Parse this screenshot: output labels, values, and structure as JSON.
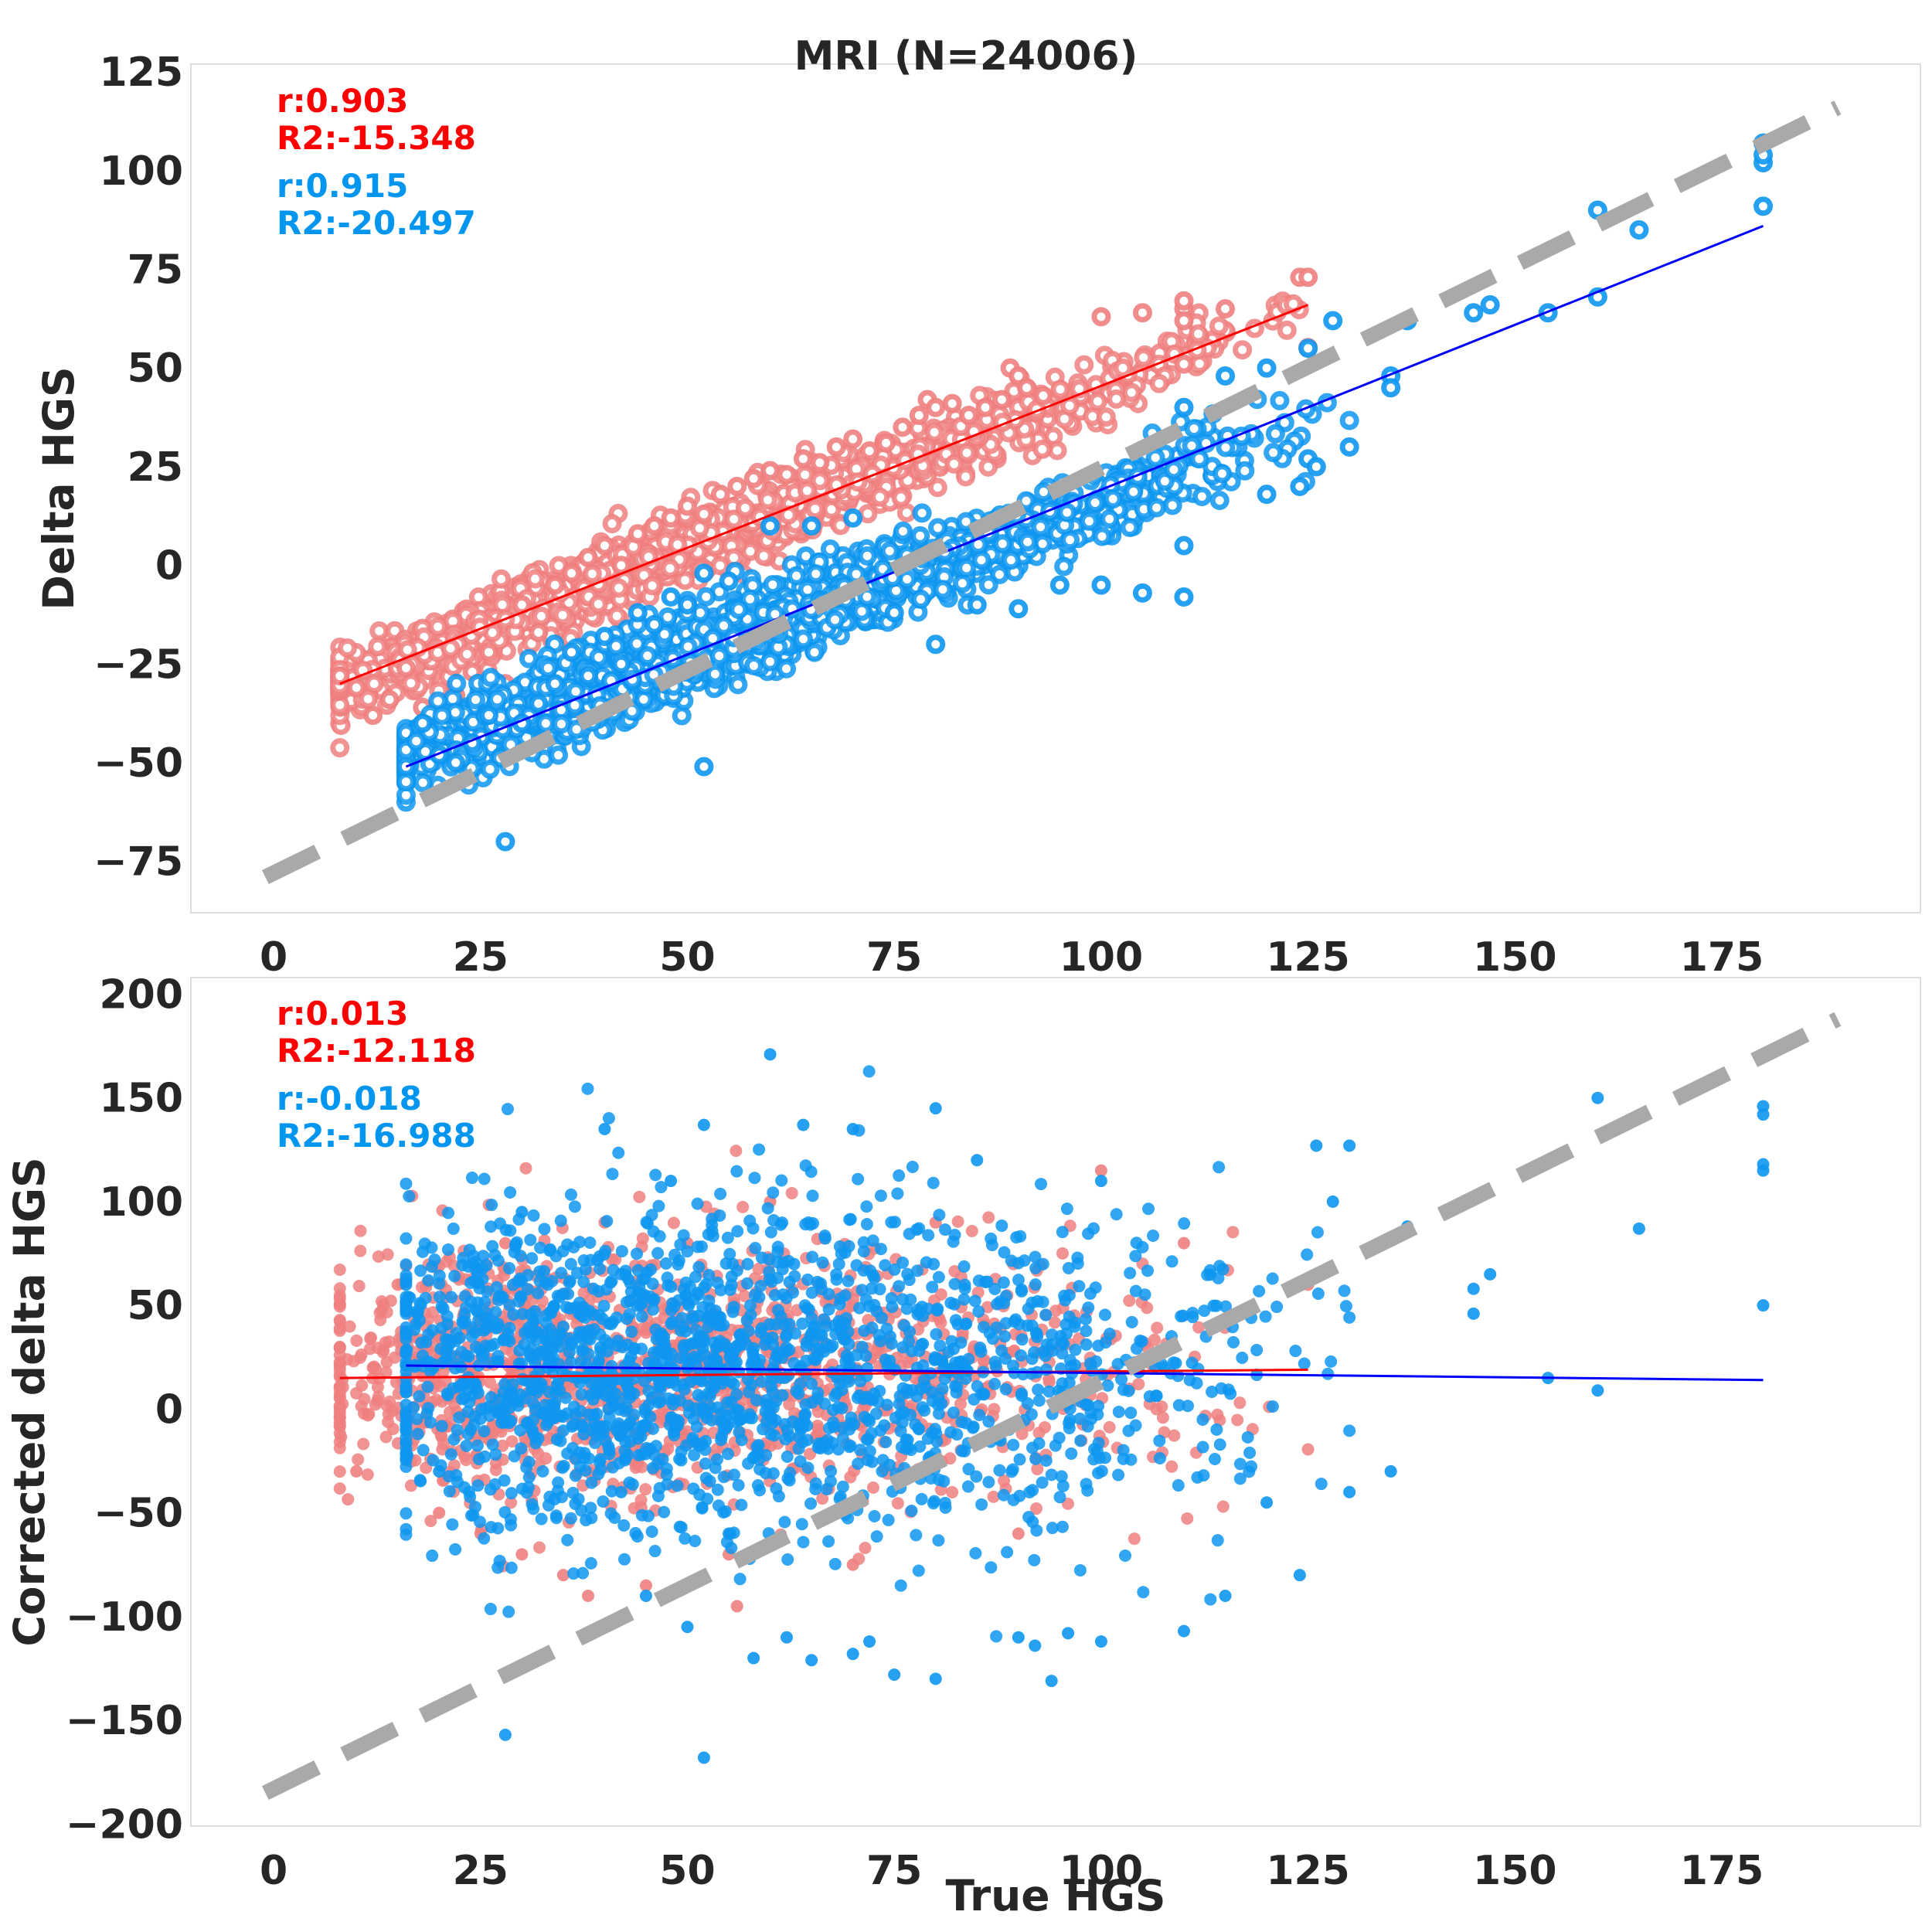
{
  "colors": {
    "female_points": "#f08080",
    "male_points": "#0e96f0",
    "female_fit": "#ff0000",
    "male_fit": "#0000ff",
    "female_text": "#ff0000",
    "male_text": "#0096f0",
    "identity_line": "#a9a9a9",
    "frame": "#dddddd"
  },
  "chart_data": [
    {
      "type": "scatter",
      "title": "MRI (N=24006)",
      "xlabel": "",
      "ylabel": "Delta HGS",
      "xlim": [
        -10,
        199
      ],
      "ylim": [
        -88,
        127
      ],
      "xticks": [
        0,
        25,
        50,
        75,
        100,
        125,
        150,
        175
      ],
      "yticks": [
        -75,
        -50,
        -25,
        0,
        25,
        50,
        75,
        100,
        125
      ],
      "grid": false,
      "marker": "ring",
      "annotations": [
        {
          "text": "r:0.903",
          "series": "female"
        },
        {
          "text": "R2:-15.348",
          "series": "female"
        },
        {
          "text": "r:0.915",
          "series": "male"
        },
        {
          "text": "R2:-20.497",
          "series": "male"
        }
      ],
      "identity_line": {
        "x": [
          -1,
          189
        ],
        "y": [
          -79,
          116
        ]
      },
      "fit_lines": [
        {
          "series": "female",
          "x": [
            8,
            125
          ],
          "y": [
            -30,
            66
          ]
        },
        {
          "series": "male",
          "x": [
            16,
            180
          ],
          "y": [
            -51,
            86
          ]
        }
      ],
      "series": [
        {
          "key": "female",
          "cloud": {
            "x_range": [
              8,
              125
            ],
            "slope": 0.82,
            "intercept": -37,
            "spread": 4.2,
            "n": 1400
          },
          "points": [
            [
              8,
              -28
            ],
            [
              10,
              -31
            ],
            [
              12,
              -38
            ],
            [
              14,
              -34
            ],
            [
              16,
              -26
            ],
            [
              18,
              -36
            ],
            [
              20,
              -35
            ],
            [
              22,
              -33
            ],
            [
              24,
              -27
            ],
            [
              26,
              -22
            ],
            [
              28,
              -30
            ],
            [
              30,
              -10
            ],
            [
              32,
              -17
            ],
            [
              34,
              -5
            ],
            [
              36,
              -2
            ],
            [
              38,
              2
            ],
            [
              40,
              5
            ],
            [
              42,
              0
            ],
            [
              44,
              8
            ],
            [
              46,
              10
            ],
            [
              48,
              12
            ],
            [
              50,
              15
            ],
            [
              52,
              13
            ],
            [
              54,
              18
            ],
            [
              56,
              20
            ],
            [
              58,
              22
            ],
            [
              60,
              24
            ],
            [
              62,
              23
            ],
            [
              64,
              27
            ],
            [
              66,
              26
            ],
            [
              68,
              30
            ],
            [
              70,
              32
            ],
            [
              72,
              29
            ],
            [
              74,
              31
            ],
            [
              76,
              35
            ],
            [
              78,
              38
            ],
            [
              79,
              42
            ],
            [
              80,
              40
            ],
            [
              82,
              41
            ],
            [
              84,
              38
            ],
            [
              86,
              40
            ],
            [
              88,
              42
            ],
            [
              89,
              50
            ],
            [
              90,
              48
            ],
            [
              91,
              45
            ],
            [
              93,
              43
            ],
            [
              100,
              63
            ],
            [
              105,
              64
            ],
            [
              110,
              65
            ],
            [
              110,
              67
            ],
            [
              110,
              62
            ],
            [
              110,
              51
            ],
            [
              115,
              65
            ],
            [
              124,
              73
            ],
            [
              125,
              73
            ]
          ]
        },
        {
          "key": "male",
          "cloud": {
            "x_range": [
              16,
              130
            ],
            "slope": 0.77,
            "intercept": -61,
            "spread": 5.0,
            "n": 1700
          },
          "points": [
            [
              16,
              -51
            ],
            [
              18,
              -40
            ],
            [
              20,
              -48
            ],
            [
              22,
              -50
            ],
            [
              24,
              -45
            ],
            [
              26,
              -38
            ],
            [
              28,
              -70
            ],
            [
              30,
              -40
            ],
            [
              32,
              -35
            ],
            [
              34,
              -30
            ],
            [
              36,
              -22
            ],
            [
              38,
              -28
            ],
            [
              40,
              -18
            ],
            [
              42,
              -25
            ],
            [
              44,
              -12
            ],
            [
              46,
              -15
            ],
            [
              48,
              -8
            ],
            [
              50,
              -10
            ],
            [
              52,
              -51
            ],
            [
              52,
              -2
            ],
            [
              55,
              -4
            ],
            [
              60,
              10
            ],
            [
              65,
              10
            ],
            [
              70,
              12
            ],
            [
              75,
              -12
            ],
            [
              80,
              -20
            ],
            [
              85,
              -10
            ],
            [
              90,
              -11
            ],
            [
              95,
              -5
            ],
            [
              100,
              -5
            ],
            [
              105,
              -7
            ],
            [
              110,
              5
            ],
            [
              110,
              -8
            ],
            [
              110,
              40
            ],
            [
              115,
              48
            ],
            [
              120,
              50
            ],
            [
              120,
              18
            ],
            [
              124,
              20
            ],
            [
              125,
              55
            ],
            [
              125,
              27
            ],
            [
              126,
              25
            ],
            [
              128,
              62
            ],
            [
              130,
              30
            ],
            [
              135,
              48
            ],
            [
              135,
              45
            ],
            [
              137,
              62
            ],
            [
              145,
              64
            ],
            [
              147,
              66
            ],
            [
              154,
              64
            ],
            [
              160,
              90
            ],
            [
              160,
              68
            ],
            [
              165,
              85
            ],
            [
              180,
              107
            ],
            [
              180,
              102
            ],
            [
              180,
              91
            ],
            [
              180,
              104
            ]
          ]
        }
      ]
    },
    {
      "type": "scatter",
      "title": "",
      "xlabel": "True HGS",
      "ylabel": "Corrected delta HGS",
      "xlim": [
        -10,
        199
      ],
      "ylim": [
        -201,
        208
      ],
      "xticks": [
        0,
        25,
        50,
        75,
        100,
        125,
        150,
        175
      ],
      "yticks": [
        -200,
        -150,
        -100,
        -50,
        0,
        50,
        100,
        150,
        200
      ],
      "grid": false,
      "marker": "dot",
      "annotations": [
        {
          "text": "r:0.013",
          "series": "female"
        },
        {
          "text": "R2:-12.118",
          "series": "female"
        },
        {
          "text": "r:-0.018",
          "series": "male"
        },
        {
          "text": "R2:-16.988",
          "series": "male"
        }
      ],
      "identity_line": {
        "x": [
          -1,
          189
        ],
        "y": [
          -185,
          188
        ]
      },
      "fit_lines": [
        {
          "series": "female",
          "x": [
            8,
            125
          ],
          "y": [
            15,
            19
          ]
        },
        {
          "series": "male",
          "x": [
            16,
            180
          ],
          "y": [
            21,
            14
          ]
        }
      ],
      "series": [
        {
          "key": "female",
          "cloud": {
            "x_range": [
              8,
              125
            ],
            "center_y": 17,
            "spread": 30,
            "n": 1300
          },
          "points": [
            [
              8,
              30
            ],
            [
              10,
              -30
            ],
            [
              12,
              20
            ],
            [
              15,
              60
            ],
            [
              20,
              -50
            ],
            [
              25,
              -60
            ],
            [
              28,
              80
            ],
            [
              30,
              -70
            ],
            [
              35,
              -80
            ],
            [
              38,
              -90
            ],
            [
              40,
              90
            ],
            [
              45,
              -85
            ],
            [
              50,
              80
            ],
            [
              55,
              -70
            ],
            [
              56,
              -95
            ],
            [
              60,
              100
            ],
            [
              70,
              -75
            ],
            [
              80,
              90
            ],
            [
              90,
              -60
            ],
            [
              100,
              115
            ],
            [
              110,
              80
            ],
            [
              125,
              60
            ]
          ]
        },
        {
          "key": "male",
          "cloud": {
            "x_range": [
              16,
              130
            ],
            "center_y": 19,
            "spread": 38,
            "n": 1900
          },
          "points": [
            [
              16,
              60
            ],
            [
              20,
              -30
            ],
            [
              28,
              -157
            ],
            [
              30,
              95
            ],
            [
              40,
              135
            ],
            [
              42,
              -40
            ],
            [
              45,
              -90
            ],
            [
              48,
              110
            ],
            [
              50,
              -105
            ],
            [
              52,
              -168
            ],
            [
              52,
              137
            ],
            [
              55,
              -60
            ],
            [
              58,
              -120
            ],
            [
              60,
              171
            ],
            [
              62,
              -110
            ],
            [
              64,
              137
            ],
            [
              65,
              -121
            ],
            [
              70,
              -118
            ],
            [
              70,
              135
            ],
            [
              72,
              -112
            ],
            [
              75,
              -128
            ],
            [
              80,
              145
            ],
            [
              80,
              -130
            ],
            [
              85,
              120
            ],
            [
              90,
              -110
            ],
            [
              92,
              -114
            ],
            [
              94,
              -131
            ],
            [
              96,
              -108
            ],
            [
              100,
              -112
            ],
            [
              100,
              110
            ],
            [
              110,
              -107
            ],
            [
              115,
              -90
            ],
            [
              120,
              -45
            ],
            [
              124,
              -80
            ],
            [
              126,
              127
            ],
            [
              128,
              100
            ],
            [
              130,
              -40
            ],
            [
              130,
              127
            ],
            [
              135,
              -30
            ],
            [
              137,
              88
            ],
            [
              145,
              58
            ],
            [
              145,
              46
            ],
            [
              147,
              65
            ],
            [
              154,
              15
            ],
            [
              160,
              150
            ],
            [
              160,
              9
            ],
            [
              165,
              87
            ],
            [
              180,
              146
            ],
            [
              180,
              142
            ],
            [
              180,
              118
            ],
            [
              180,
              115
            ],
            [
              180,
              50
            ]
          ]
        }
      ]
    }
  ]
}
